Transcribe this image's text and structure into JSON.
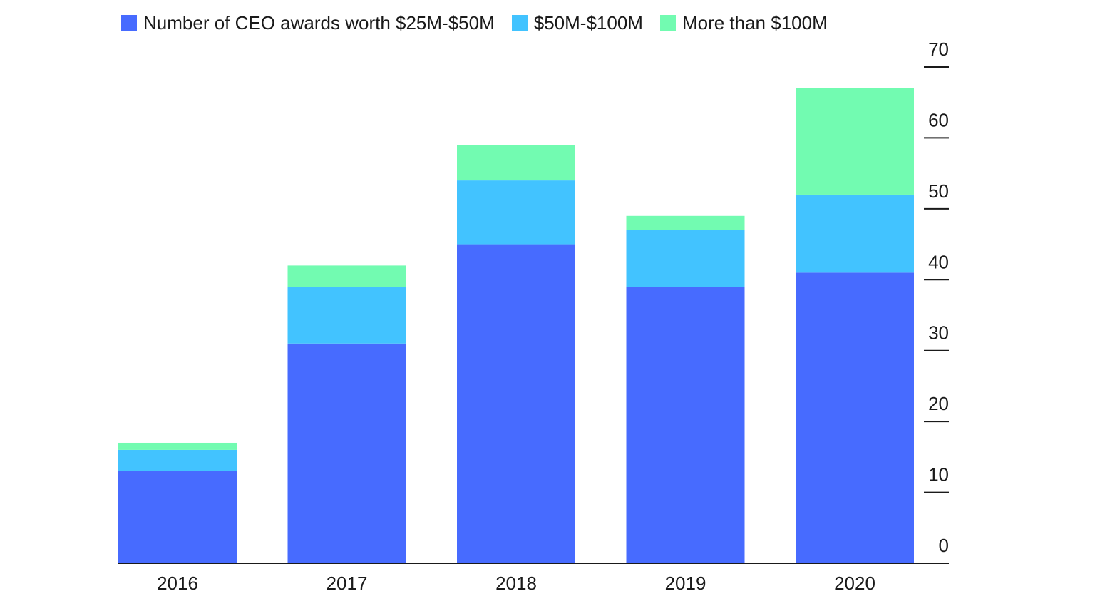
{
  "chart_data": {
    "type": "bar",
    "stacked": true,
    "categories": [
      "2016",
      "2017",
      "2018",
      "2019",
      "2020"
    ],
    "series": [
      {
        "name": "Number of CEO awards worth $25M-$50M",
        "color": "#476bff",
        "values": [
          13,
          31,
          45,
          39,
          41
        ]
      },
      {
        "name": "$50M-$100M",
        "color": "#42c3ff",
        "values": [
          3,
          8,
          9,
          8,
          11
        ]
      },
      {
        "name": "More than $100M",
        "color": "#72fbb1",
        "values": [
          1,
          3,
          5,
          2,
          15
        ]
      }
    ],
    "y_ticks": [
      0,
      10,
      20,
      30,
      40,
      50,
      60,
      70
    ],
    "ylim": [
      0,
      70
    ],
    "y_axis_position": "right",
    "legend_position": "top",
    "grid": false
  }
}
